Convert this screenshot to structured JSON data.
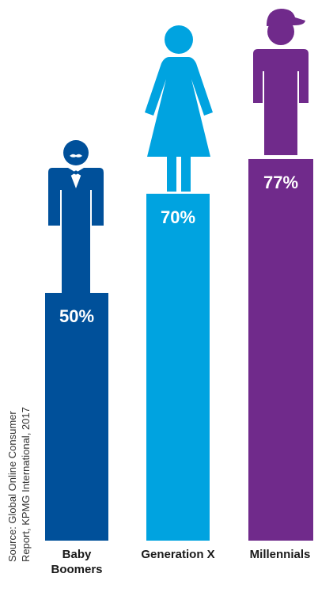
{
  "chart_data": {
    "type": "bar",
    "categories": [
      "Baby Boomers",
      "Generation X",
      "Millennials"
    ],
    "category_lines": [
      [
        "Baby",
        "Boomers"
      ],
      [
        "Generation X"
      ],
      [
        "Millennials"
      ]
    ],
    "values": [
      50,
      70,
      77
    ],
    "value_labels": [
      "50%",
      "70%",
      "77%"
    ],
    "colors": [
      "#00509a",
      "#00a3e0",
      "#702a8b"
    ],
    "icons": [
      "man-with-mustache-bowtie-icon",
      "woman-icon",
      "man-with-cap-icon"
    ],
    "ylim": [
      0,
      100
    ],
    "legend": "none",
    "grid": false
  },
  "source": {
    "line1": "Source: Global Online Consumer",
    "line2": "Report, KPMG International, 2017"
  }
}
